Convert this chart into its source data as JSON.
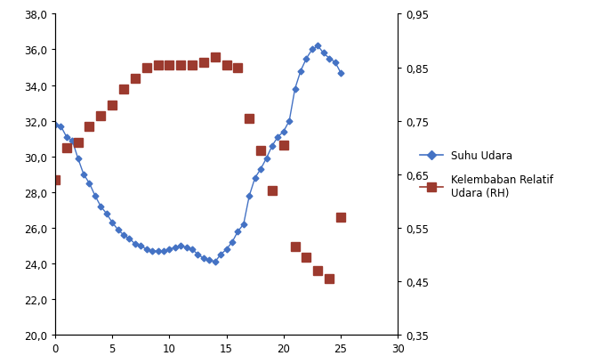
{
  "suhu_x": [
    0,
    0.5,
    1,
    1.5,
    2,
    2.5,
    3,
    3.5,
    4,
    4.5,
    5,
    5.5,
    6,
    6.5,
    7,
    7.5,
    8,
    8.5,
    9,
    9.5,
    10,
    10.5,
    11,
    11.5,
    12,
    12.5,
    13,
    13.5,
    14,
    14.5,
    15,
    15.5,
    16,
    16.5,
    17,
    17.5,
    18,
    18.5,
    19,
    19.5,
    20,
    20.5,
    21,
    21.5,
    22,
    22.5,
    23,
    23.5,
    24,
    24.5,
    25
  ],
  "suhu_y": [
    31.8,
    31.7,
    31.1,
    30.9,
    29.9,
    29.0,
    28.5,
    27.8,
    27.2,
    26.8,
    26.3,
    25.9,
    25.6,
    25.4,
    25.1,
    25.0,
    24.8,
    24.7,
    24.7,
    24.7,
    24.8,
    24.9,
    25.0,
    24.9,
    24.8,
    24.5,
    24.3,
    24.2,
    24.1,
    24.5,
    24.8,
    25.2,
    25.8,
    26.2,
    27.8,
    28.8,
    29.3,
    29.9,
    30.6,
    31.1,
    31.4,
    32.0,
    33.8,
    34.8,
    35.5,
    36.0,
    36.2,
    35.8,
    35.5,
    35.3,
    34.7
  ],
  "rh_x": [
    0,
    1,
    2,
    3,
    4,
    5,
    6,
    7,
    8,
    9,
    10,
    11,
    12,
    13,
    14,
    15,
    16,
    17,
    18,
    19,
    20,
    21,
    22,
    23,
    24,
    25
  ],
  "rh_y": [
    0.64,
    0.7,
    0.71,
    0.74,
    0.76,
    0.78,
    0.81,
    0.83,
    0.85,
    0.855,
    0.855,
    0.855,
    0.855,
    0.86,
    0.87,
    0.855,
    0.85,
    0.755,
    0.695,
    0.62,
    0.705,
    0.515,
    0.495,
    0.47,
    0.455,
    0.57
  ],
  "suhu_color": "#4472C4",
  "rh_color": "#9C3A2E",
  "left_ylim": [
    20.0,
    38.0
  ],
  "right_ylim": [
    0.35,
    0.95
  ],
  "left_yticks": [
    20.0,
    22.0,
    24.0,
    26.0,
    28.0,
    30.0,
    32.0,
    34.0,
    36.0,
    38.0
  ],
  "right_yticks": [
    0.35,
    0.45,
    0.55,
    0.65,
    0.75,
    0.85,
    0.95
  ],
  "xlim": [
    0,
    30
  ],
  "xticks": [
    0,
    5,
    10,
    15,
    20,
    25,
    30
  ],
  "legend_suhu": "Suhu Udara",
  "legend_rh": "Kelembaban Relatif\nUdara (RH)",
  "bg_color": "#FFFFFF"
}
